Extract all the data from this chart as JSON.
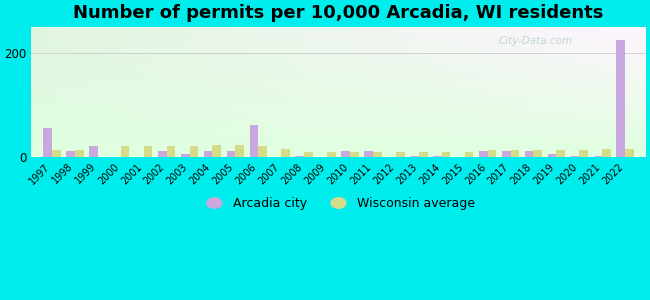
{
  "title": "Number of permits per 10,000 Arcadia, WI residents",
  "years": [
    1997,
    1998,
    1999,
    2000,
    2001,
    2002,
    2003,
    2004,
    2005,
    2006,
    2007,
    2008,
    2009,
    2010,
    2011,
    2012,
    2013,
    2014,
    2015,
    2016,
    2017,
    2018,
    2019,
    2020,
    2021,
    2022
  ],
  "arcadia": [
    55,
    10,
    20,
    0,
    0,
    10,
    5,
    10,
    10,
    60,
    0,
    2,
    0,
    10,
    10,
    0,
    2,
    2,
    0,
    10,
    10,
    10,
    5,
    2,
    2,
    225
  ],
  "wisconsin": [
    12,
    12,
    0,
    20,
    20,
    20,
    20,
    22,
    22,
    20,
    15,
    8,
    8,
    8,
    8,
    8,
    8,
    8,
    8,
    12,
    12,
    12,
    12,
    12,
    15,
    15
  ],
  "arcadia_color": "#c9a8e0",
  "wisconsin_color": "#d4dc8a",
  "bg_color": "#00eded",
  "ylim": [
    0,
    250
  ],
  "yticks": [
    0,
    200
  ],
  "bar_width": 0.38,
  "title_fontsize": 13,
  "legend_arcadia": "Arcadia city",
  "legend_wisconsin": "Wisconsin average"
}
